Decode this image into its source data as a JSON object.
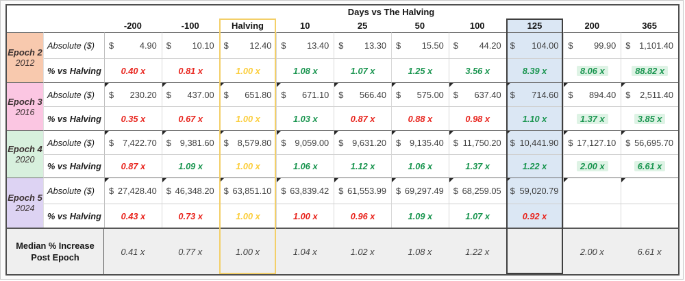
{
  "title": "Days vs The Halving",
  "currency": "$",
  "columns": [
    "-200",
    "-100",
    "Halving",
    "10",
    "25",
    "50",
    "100",
    "125",
    "200",
    "365"
  ],
  "row_labels": {
    "absolute": "Absolute ($)",
    "pct": "% vs Halving"
  },
  "median_label_line1": "Median % Increase",
  "median_label_line2": "Post Epoch",
  "colors": {
    "red_text": "#e8241d",
    "green_text": "#18944e",
    "gold_text": "#fbcd3a",
    "green_highlight_bg": "#def3e5",
    "day125_column_bg": "#dbe7f4",
    "day125_border": "#3f3f3f",
    "halving_border": "#f3cf68",
    "epoch2_bg": "#f8c9ae",
    "epoch3_bg": "#fbc6e2",
    "epoch4_bg": "#d7f0dd",
    "epoch5_bg": "#ddd3f3",
    "median_row_bg": "#efefef"
  },
  "epochs": [
    {
      "name": "Epoch 2",
      "year": "2012",
      "abs": [
        "4.90",
        "10.10",
        "12.40",
        "13.40",
        "13.30",
        "15.50",
        "44.20",
        "104.00",
        "99.90",
        "1,101.40"
      ],
      "pct": [
        {
          "v": "0.40 x",
          "c": "red"
        },
        {
          "v": "0.81 x",
          "c": "red"
        },
        {
          "v": "1.00 x",
          "c": "gold"
        },
        {
          "v": "1.08 x",
          "c": "green"
        },
        {
          "v": "1.07 x",
          "c": "green"
        },
        {
          "v": "1.25 x",
          "c": "green"
        },
        {
          "v": "3.56 x",
          "c": "green"
        },
        {
          "v": "8.39 x",
          "c": "green"
        },
        {
          "v": "8.06 x",
          "c": "green-hl"
        },
        {
          "v": "88.82 x",
          "c": "green-hl"
        }
      ]
    },
    {
      "name": "Epoch 3",
      "year": "2016",
      "abs": [
        "230.20",
        "437.00",
        "651.80",
        "671.10",
        "566.40",
        "575.00",
        "637.40",
        "714.60",
        "894.40",
        "2,511.40"
      ],
      "pct": [
        {
          "v": "0.35 x",
          "c": "red"
        },
        {
          "v": "0.67 x",
          "c": "red"
        },
        {
          "v": "1.00 x",
          "c": "gold"
        },
        {
          "v": "1.03 x",
          "c": "green"
        },
        {
          "v": "0.87 x",
          "c": "red"
        },
        {
          "v": "0.88 x",
          "c": "red"
        },
        {
          "v": "0.98 x",
          "c": "red"
        },
        {
          "v": "1.10 x",
          "c": "green"
        },
        {
          "v": "1.37 x",
          "c": "green-hl"
        },
        {
          "v": "3.85 x",
          "c": "green-hl"
        }
      ]
    },
    {
      "name": "Epoch 4",
      "year": "2020",
      "abs": [
        "7,422.70",
        "9,381.60",
        "8,579.80",
        "9,059.00",
        "9,631.20",
        "9,135.40",
        "11,750.20",
        "10,441.90",
        "17,127.10",
        "56,695.70"
      ],
      "pct": [
        {
          "v": "0.87 x",
          "c": "red"
        },
        {
          "v": "1.09 x",
          "c": "green"
        },
        {
          "v": "1.00 x",
          "c": "gold"
        },
        {
          "v": "1.06 x",
          "c": "green"
        },
        {
          "v": "1.12 x",
          "c": "green"
        },
        {
          "v": "1.06 x",
          "c": "green"
        },
        {
          "v": "1.37 x",
          "c": "green"
        },
        {
          "v": "1.22 x",
          "c": "green"
        },
        {
          "v": "2.00 x",
          "c": "green-hl"
        },
        {
          "v": "6.61 x",
          "c": "green-hl"
        }
      ]
    },
    {
      "name": "Epoch 5",
      "year": "2024",
      "abs": [
        "27,428.40",
        "46,348.20",
        "63,851.10",
        "63,839.42",
        "61,553.99",
        "69,297.49",
        "68,259.05",
        "59,020.79",
        "",
        ""
      ],
      "pct": [
        {
          "v": "0.43 x",
          "c": "red"
        },
        {
          "v": "0.73 x",
          "c": "red"
        },
        {
          "v": "1.00 x",
          "c": "gold"
        },
        {
          "v": "1.00 x",
          "c": "red"
        },
        {
          "v": "0.96 x",
          "c": "red"
        },
        {
          "v": "1.09 x",
          "c": "green"
        },
        {
          "v": "1.07 x",
          "c": "green"
        },
        {
          "v": "0.92 x",
          "c": "red"
        },
        {
          "v": "",
          "c": ""
        },
        {
          "v": "",
          "c": ""
        }
      ]
    }
  ],
  "median": {
    "values": [
      "0.41 x",
      "0.77 x",
      "1.00 x",
      "1.04 x",
      "1.02 x",
      "1.08 x",
      "1.22 x",
      "",
      "2.00 x",
      "6.61 x"
    ]
  }
}
